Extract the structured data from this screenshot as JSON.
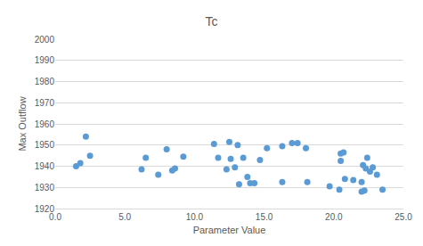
{
  "chart_data": {
    "type": "scatter",
    "title": "Tc",
    "x_label": "Parameter Value",
    "y_label": "Max Outflow",
    "x": [
      1.5,
      1.8,
      2.2,
      2.5,
      6.2,
      6.5,
      7.4,
      8.0,
      8.4,
      8.6,
      9.2,
      11.4,
      11.7,
      12.3,
      12.5,
      12.6,
      12.9,
      13.1,
      13.2,
      13.5,
      13.8,
      14.0,
      14.3,
      14.7,
      15.2,
      16.3,
      16.3,
      17.0,
      17.4,
      18.0,
      18.1,
      19.7,
      20.4,
      20.5,
      20.5,
      20.7,
      20.8,
      21.4,
      22.0,
      22.0,
      22.1,
      22.2,
      22.3,
      22.4,
      22.6,
      22.8,
      23.1,
      23.5
    ],
    "values": [
      1940,
      1941.5,
      1954,
      1945,
      1938.5,
      1944,
      1936,
      1948,
      1938,
      1939,
      1944.5,
      1950.5,
      1944,
      1938.5,
      1951.5,
      1943.5,
      1939.5,
      1950,
      1931.5,
      1944,
      1935,
      1932,
      1932,
      1943,
      1948.5,
      1932.5,
      1949.5,
      1951,
      1951,
      1948.5,
      1932.5,
      1930.5,
      1929,
      1946,
      1942.5,
      1946.5,
      1934,
      1933.5,
      1932.5,
      1928,
      1940.5,
      1928.5,
      1939,
      1944,
      1937.5,
      1939.5,
      1936,
      1929
    ],
    "color": "#5b9bd5",
    "marker": "circle",
    "xlim": [
      0,
      25
    ],
    "xticks": [
      {
        "value": 0,
        "label": "0.0"
      },
      {
        "value": 5,
        "label": "5.0"
      },
      {
        "value": 10,
        "label": "10.0"
      },
      {
        "value": 15,
        "label": "15.0"
      },
      {
        "value": 20,
        "label": "20.0"
      },
      {
        "value": 25,
        "label": "25.0"
      }
    ],
    "ylim": [
      1920,
      2000
    ],
    "yticks": [
      1920,
      1930,
      1940,
      1950,
      1960,
      1970,
      1980,
      1990,
      2000
    ],
    "grid": true
  }
}
